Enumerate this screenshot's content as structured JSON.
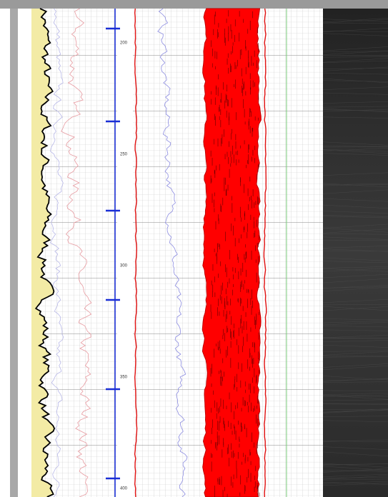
{
  "depth_track": {
    "labels": [
      "200",
      "250",
      "300",
      "350",
      "400"
    ]
  }
}
